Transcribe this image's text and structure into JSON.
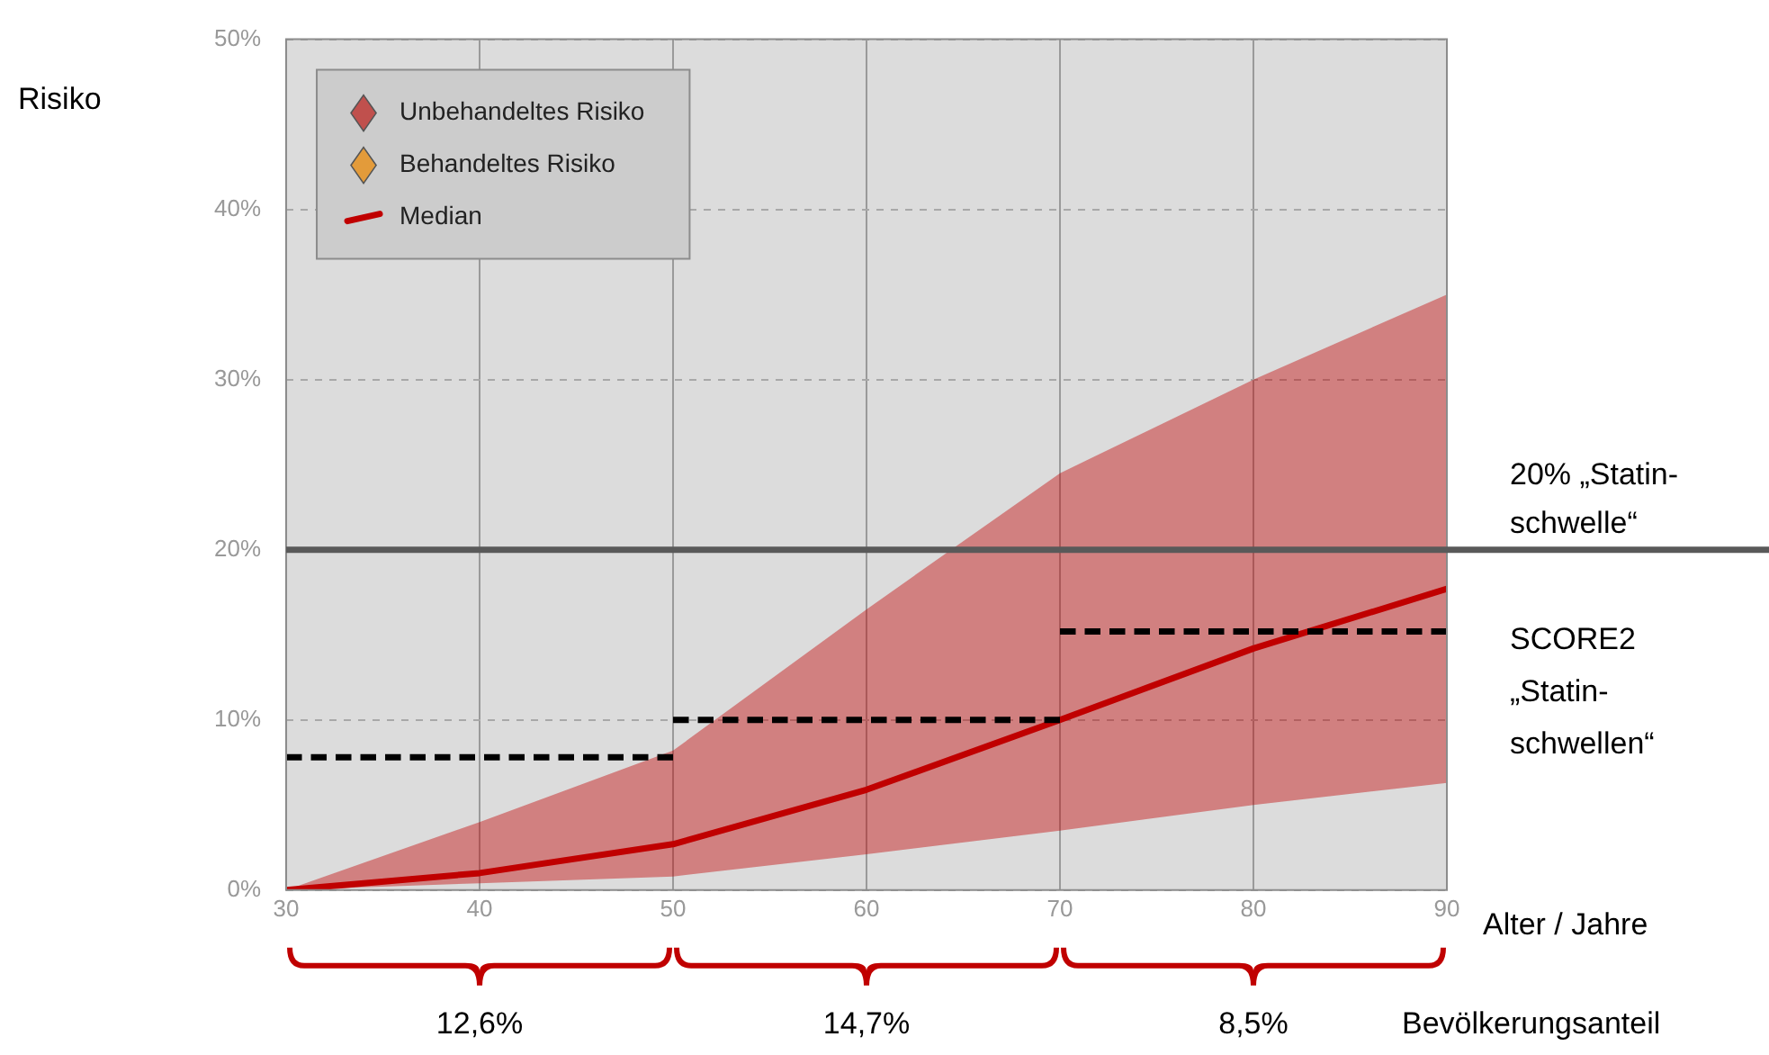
{
  "chart_data": {
    "type": "line",
    "ylabel": "Risiko",
    "xlabel": "Alter / Jahre",
    "x": [
      30,
      40,
      50,
      60,
      70,
      80,
      90
    ],
    "series": [
      {
        "name": "Unbehandeltes Risiko",
        "type": "scatter",
        "marker": "diamond",
        "color": "#c0504d",
        "values": [
          null,
          null,
          null,
          null,
          null,
          null,
          null
        ]
      },
      {
        "name": "Behandeltes Risiko",
        "type": "scatter",
        "marker": "diamond",
        "color": "#e39b3a",
        "values": [
          null,
          null,
          null,
          null,
          null,
          null,
          null
        ]
      },
      {
        "name": "Median",
        "type": "line",
        "color": "#c00000",
        "values": [
          0,
          1,
          2.7,
          5.9,
          10,
          14.2,
          17.7
        ],
        "lower": [
          0,
          0.4,
          0.8,
          2.1,
          3.5,
          5,
          6.3
        ],
        "upper": [
          0,
          4,
          8.2,
          16.5,
          24.5,
          30,
          35
        ]
      },
      {
        "type": "line",
        "line_style": "dashed",
        "color": "#000000",
        "x": [
          30,
          50
        ],
        "values": [
          7.8,
          7.8
        ]
      },
      {
        "type": "line",
        "line_style": "dashed",
        "color": "#000000",
        "x": [
          50,
          70
        ],
        "values": [
          10,
          10
        ]
      },
      {
        "type": "line",
        "line_style": "dashed",
        "color": "#000000",
        "x": [
          70,
          90
        ],
        "values": [
          15.2,
          15.2
        ]
      }
    ],
    "xlim": [
      30,
      90
    ],
    "xticks": [
      30,
      40,
      50,
      60,
      70,
      80,
      90
    ],
    "ylim": [
      0,
      50
    ],
    "yticks": [
      {
        "value": 0,
        "label": "0%"
      },
      {
        "value": 10,
        "label": "10%"
      },
      {
        "value": 20,
        "label": "20%"
      },
      {
        "value": 30,
        "label": "30%"
      },
      {
        "value": 40,
        "label": "40%"
      },
      {
        "value": 50,
        "label": "50%"
      }
    ],
    "ref_lines": [
      {
        "axis": "y",
        "value": 20,
        "label": "20% „Statin-schwelle“",
        "color": "#595959"
      }
    ],
    "annotations": [
      {
        "text": "SCORE2 „Statin-schwellen“",
        "x": 90,
        "y": 15.2
      },
      "12,6%",
      "14,7%",
      "8,5%",
      "Bevölkerungsanteil"
    ],
    "grid": true,
    "legend": "top left"
  }
}
